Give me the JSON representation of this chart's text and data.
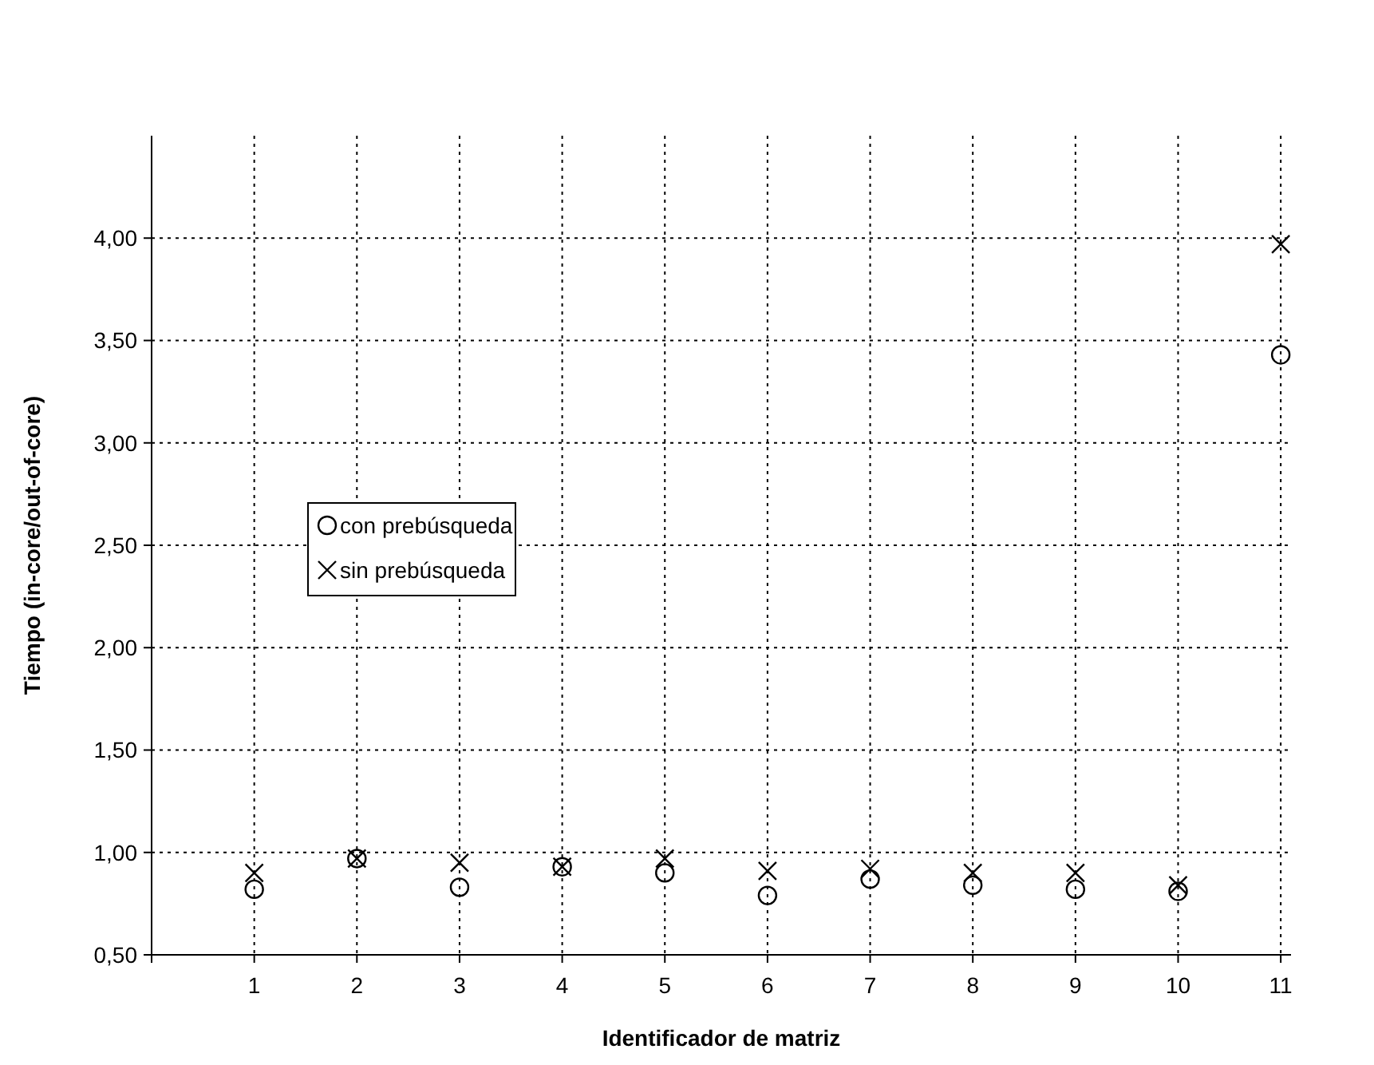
{
  "chart_data": {
    "type": "scatter",
    "xlabel": "Identificador de matriz",
    "ylabel": "Tiempo (in-core/out-of-core)",
    "x": [
      1,
      2,
      3,
      4,
      5,
      6,
      7,
      8,
      9,
      10,
      11
    ],
    "xlim": [
      0,
      11.1
    ],
    "xticks": [
      1,
      2,
      3,
      4,
      5,
      6,
      7,
      8,
      9,
      10,
      11
    ],
    "ylim": [
      0.5,
      4.5
    ],
    "yticks": [
      {
        "value": 0.5,
        "label": "0,50"
      },
      {
        "value": 1,
        "label": "1,00"
      },
      {
        "value": 1.5,
        "label": "1,50"
      },
      {
        "value": 2,
        "label": "2,00"
      },
      {
        "value": 2.5,
        "label": "2,50"
      },
      {
        "value": 3,
        "label": "3,00"
      },
      {
        "value": 3.5,
        "label": "3,50"
      },
      {
        "value": 4,
        "label": "4,00"
      }
    ],
    "grid": true,
    "legend": "left",
    "series": [
      {
        "name": "con prebúsqueda",
        "color": "#000000",
        "marker": "circle",
        "values": [
          0.82,
          0.97,
          0.83,
          0.93,
          0.9,
          0.79,
          0.87,
          0.84,
          0.82,
          0.81,
          3.43
        ]
      },
      {
        "name": "sin prebúsqueda",
        "color": "#000000",
        "marker": "cross",
        "values": [
          0.9,
          0.97,
          0.95,
          0.93,
          0.97,
          0.91,
          0.92,
          0.9,
          0.9,
          0.84,
          3.97
        ]
      }
    ]
  }
}
